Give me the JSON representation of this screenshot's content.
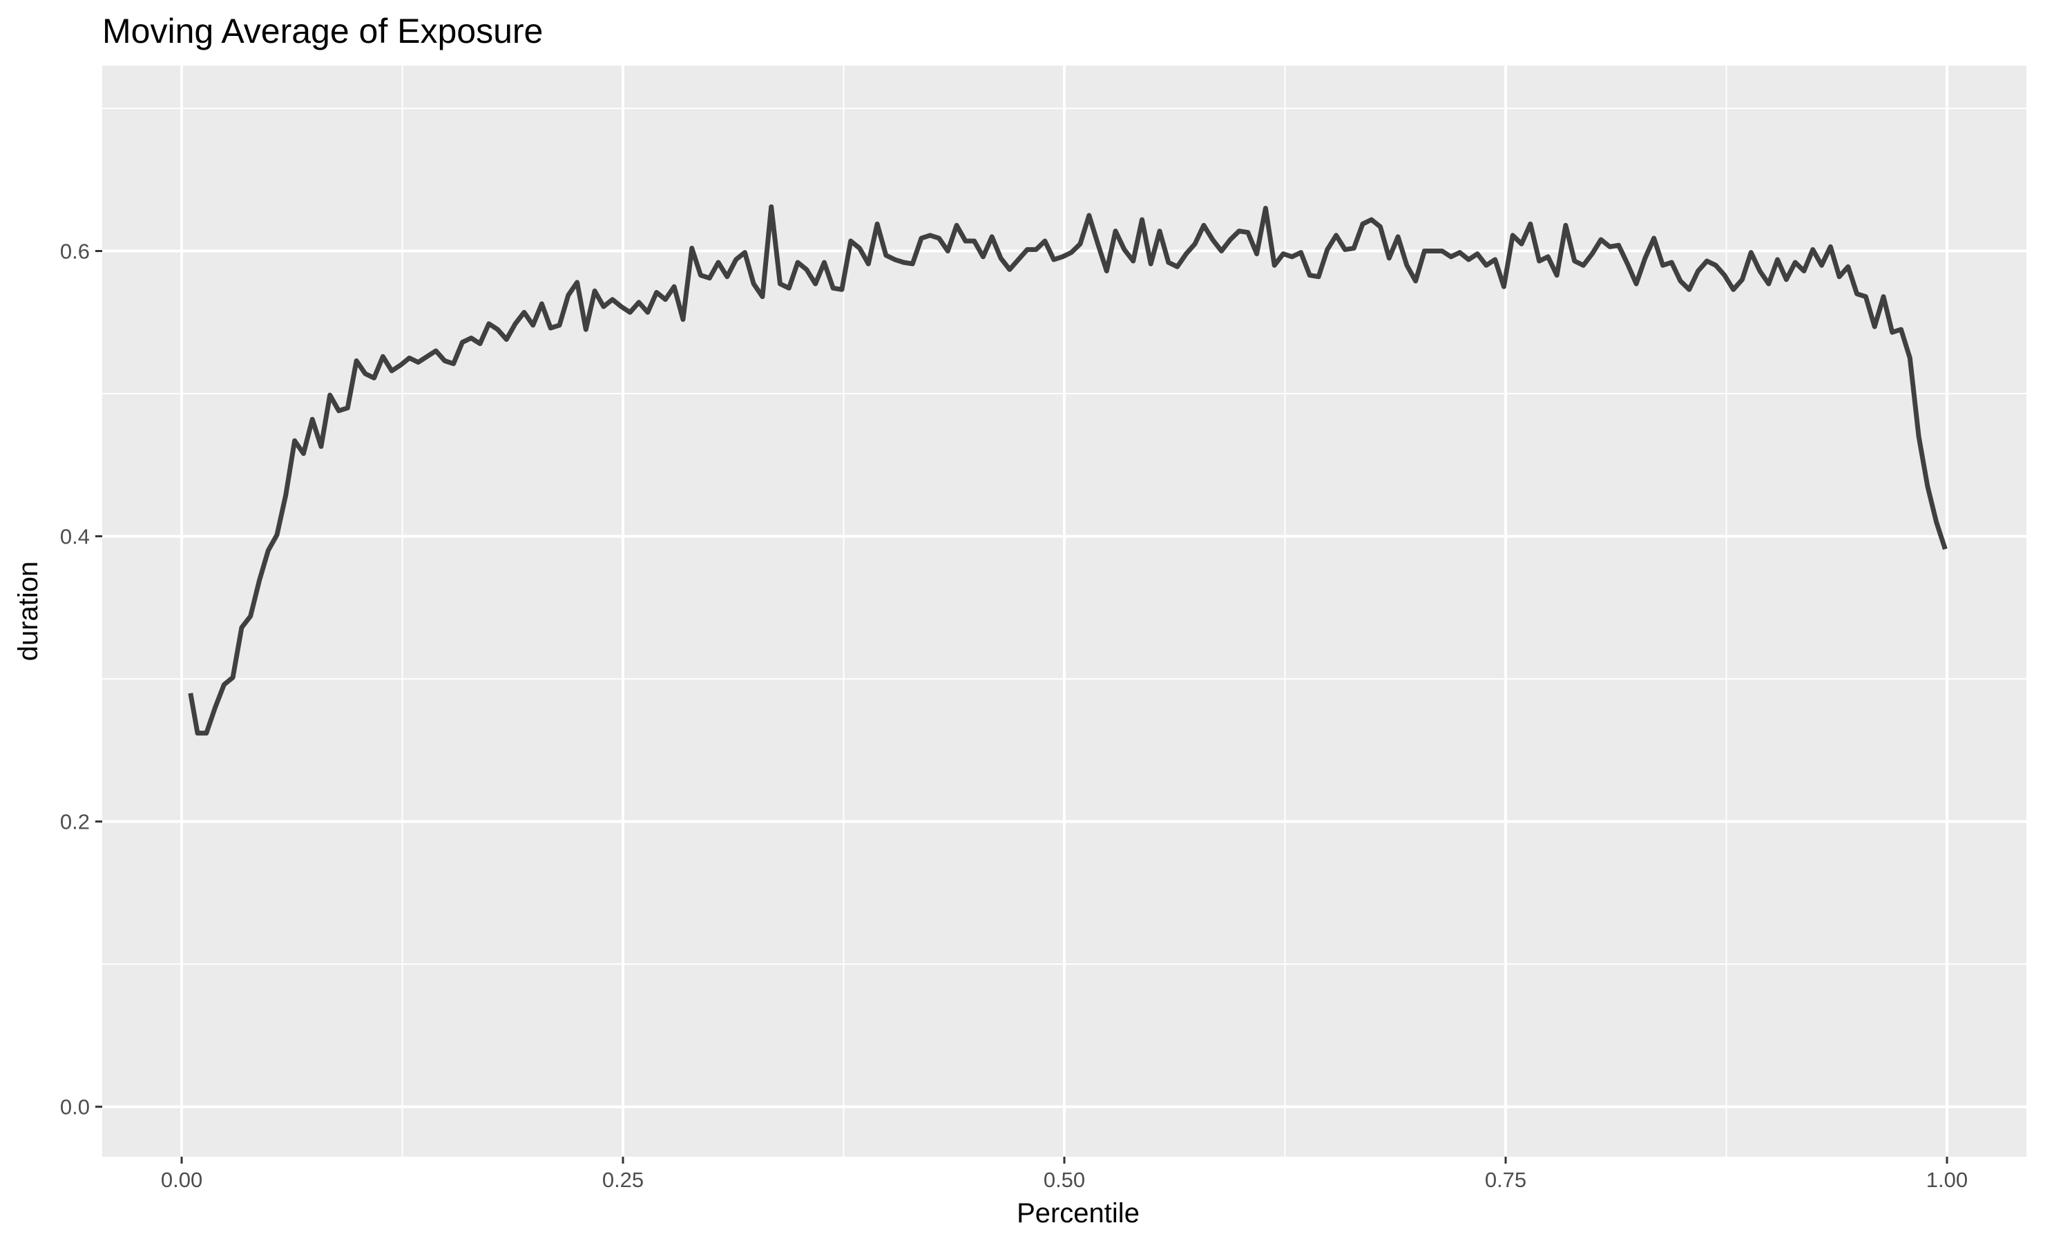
{
  "chart_data": {
    "type": "line",
    "title": "Moving Average of Exposure",
    "xlabel": "Percentile",
    "ylabel": "duration",
    "xlim": [
      -0.045,
      1.045
    ],
    "ylim": [
      -0.035,
      0.73
    ],
    "x_ticks": [
      0.0,
      0.25,
      0.5,
      0.75,
      1.0
    ],
    "x_tick_labels": [
      "0.00",
      "0.25",
      "0.50",
      "0.75",
      "1.00"
    ],
    "y_ticks": [
      0.0,
      0.2,
      0.4,
      0.6
    ],
    "y_tick_labels": [
      "0.0",
      "0.2",
      "0.4",
      "0.6"
    ],
    "x_minor_ticks": [
      0.125,
      0.375,
      0.625,
      0.875
    ],
    "y_minor_ticks": [
      0.1,
      0.3,
      0.5,
      0.7
    ],
    "grid": true,
    "colors": {
      "panel": "#EBEBEB",
      "grid": "#FFFFFF",
      "line": "#404040"
    },
    "series": [
      {
        "x": [
          0.005,
          0.009,
          0.014,
          0.019,
          0.024,
          0.029,
          0.034,
          0.039,
          0.044,
          0.049,
          0.054,
          0.059,
          0.064,
          0.069,
          0.074,
          0.079,
          0.084,
          0.089,
          0.094,
          0.099,
          0.104,
          0.109,
          0.114,
          0.119,
          0.124,
          0.129,
          0.134,
          0.139,
          0.144,
          0.149,
          0.154,
          0.159,
          0.164,
          0.169,
          0.174,
          0.179,
          0.184,
          0.189,
          0.194,
          0.199,
          0.204,
          0.209,
          0.214,
          0.219,
          0.224,
          0.229,
          0.234,
          0.239,
          0.244,
          0.249,
          0.254,
          0.259,
          0.264,
          0.269,
          0.274,
          0.279,
          0.284,
          0.289,
          0.294,
          0.299,
          0.304,
          0.309,
          0.314,
          0.319,
          0.324,
          0.329,
          0.334,
          0.339,
          0.344,
          0.349,
          0.354,
          0.359,
          0.364,
          0.369,
          0.374,
          0.379,
          0.384,
          0.389,
          0.394,
          0.399,
          0.404,
          0.409,
          0.414,
          0.419,
          0.424,
          0.429,
          0.434,
          0.439,
          0.444,
          0.449,
          0.454,
          0.459,
          0.464,
          0.469,
          0.474,
          0.479,
          0.484,
          0.489,
          0.494,
          0.499,
          0.504,
          0.509,
          0.514,
          0.519,
          0.524,
          0.529,
          0.534,
          0.539,
          0.544,
          0.549,
          0.554,
          0.559,
          0.564,
          0.569,
          0.574,
          0.579,
          0.584,
          0.589,
          0.594,
          0.599,
          0.604,
          0.609,
          0.614,
          0.619,
          0.624,
          0.629,
          0.634,
          0.639,
          0.644,
          0.649,
          0.654,
          0.659,
          0.664,
          0.669,
          0.674,
          0.679,
          0.684,
          0.689,
          0.694,
          0.699,
          0.704,
          0.709,
          0.714,
          0.719,
          0.724,
          0.729,
          0.734,
          0.739,
          0.744,
          0.749,
          0.754,
          0.759,
          0.764,
          0.769,
          0.774,
          0.779,
          0.784,
          0.789,
          0.794,
          0.799,
          0.804,
          0.809,
          0.814,
          0.819,
          0.824,
          0.829,
          0.834,
          0.839,
          0.844,
          0.849,
          0.854,
          0.859,
          0.864,
          0.869,
          0.874,
          0.879,
          0.884,
          0.889,
          0.894,
          0.899,
          0.904,
          0.909,
          0.914,
          0.919,
          0.924,
          0.929,
          0.934,
          0.939,
          0.944,
          0.949,
          0.954,
          0.959,
          0.964,
          0.969,
          0.974,
          0.979,
          0.984,
          0.989,
          0.994,
          0.999
        ],
        "values": [
          0.29,
          0.262,
          0.262,
          0.28,
          0.296,
          0.301,
          0.336,
          0.344,
          0.369,
          0.39,
          0.401,
          0.429,
          0.467,
          0.458,
          0.482,
          0.463,
          0.499,
          0.488,
          0.49,
          0.523,
          0.514,
          0.511,
          0.526,
          0.516,
          0.52,
          0.525,
          0.522,
          0.526,
          0.53,
          0.523,
          0.521,
          0.536,
          0.539,
          0.535,
          0.549,
          0.545,
          0.538,
          0.549,
          0.557,
          0.548,
          0.563,
          0.546,
          0.548,
          0.569,
          0.578,
          0.545,
          0.572,
          0.561,
          0.566,
          0.561,
          0.557,
          0.564,
          0.557,
          0.571,
          0.566,
          0.575,
          0.552,
          0.602,
          0.583,
          0.581,
          0.592,
          0.582,
          0.594,
          0.599,
          0.577,
          0.568,
          0.631,
          0.577,
          0.574,
          0.592,
          0.587,
          0.577,
          0.592,
          0.574,
          0.573,
          0.607,
          0.602,
          0.591,
          0.619,
          0.597,
          0.594,
          0.592,
          0.591,
          0.609,
          0.611,
          0.609,
          0.6,
          0.618,
          0.607,
          0.607,
          0.596,
          0.61,
          0.595,
          0.587,
          0.594,
          0.601,
          0.601,
          0.607,
          0.594,
          0.596,
          0.599,
          0.605,
          0.625,
          0.605,
          0.586,
          0.614,
          0.601,
          0.593,
          0.622,
          0.591,
          0.614,
          0.592,
          0.589,
          0.598,
          0.605,
          0.618,
          0.608,
          0.6,
          0.608,
          0.614,
          0.613,
          0.598,
          0.63,
          0.59,
          0.598,
          0.596,
          0.599,
          0.583,
          0.582,
          0.601,
          0.611,
          0.601,
          0.602,
          0.619,
          0.622,
          0.617,
          0.595,
          0.61,
          0.59,
          0.579,
          0.6,
          0.6,
          0.6,
          0.596,
          0.599,
          0.594,
          0.598,
          0.59,
          0.594,
          0.575,
          0.611,
          0.605,
          0.619,
          0.593,
          0.596,
          0.583,
          0.618,
          0.593,
          0.59,
          0.598,
          0.608,
          0.603,
          0.604,
          0.591,
          0.577,
          0.595,
          0.609,
          0.59,
          0.592,
          0.579,
          0.573,
          0.586,
          0.593,
          0.59,
          0.583,
          0.573,
          0.58,
          0.599,
          0.586,
          0.577,
          0.594,
          0.58,
          0.592,
          0.586,
          0.601,
          0.59,
          0.603,
          0.582,
          0.589,
          0.57,
          0.568,
          0.547,
          0.568,
          0.543,
          0.545,
          0.525,
          0.47,
          0.435,
          0.41,
          0.391
        ]
      }
    ]
  }
}
